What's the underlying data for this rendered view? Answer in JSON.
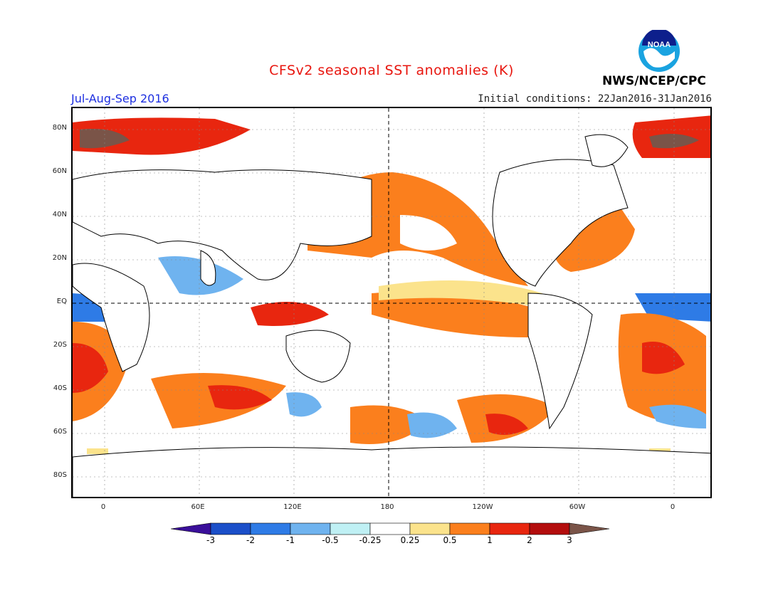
{
  "title": "CFSv2 seasonal SST anomalies (K)",
  "period": "Jul-Aug-Sep 2016",
  "initial_conditions": "Initial conditions: 22Jan2016-31Jan2016",
  "agency": "NWS/NCEP/CPC",
  "logo_text": "NOAA",
  "lat_labels": [
    "80N",
    "60N",
    "40N",
    "20N",
    "EQ",
    "20S",
    "40S",
    "60S",
    "80S"
  ],
  "lon_labels": [
    "0",
    "60E",
    "120E",
    "180",
    "120W",
    "60W",
    "0"
  ],
  "legend": {
    "labels": [
      "-3",
      "-2",
      "-1",
      "-0.5",
      "-0.25",
      "0.25",
      "0.5",
      "1",
      "2",
      "3"
    ],
    "colors": [
      "#3a0f9a",
      "#1b4fc9",
      "#2e7be6",
      "#6fb3ef",
      "#bff0f4",
      "#ffffff",
      "#fbe38c",
      "#fb7f1d",
      "#e8260f",
      "#b30d0d",
      "#7a5448"
    ]
  },
  "colors": {
    "title": "#e8160f",
    "period": "#1d2fe0",
    "land_outline": "#000000"
  }
}
